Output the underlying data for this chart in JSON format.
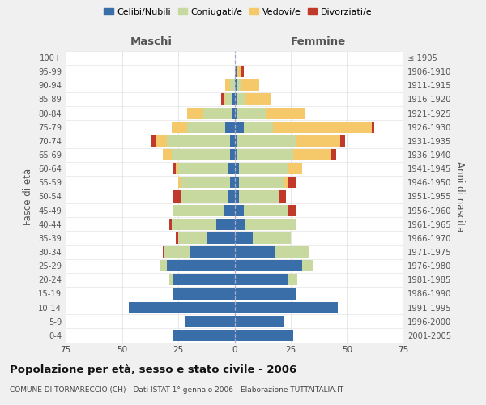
{
  "age_groups": [
    "0-4",
    "5-9",
    "10-14",
    "15-19",
    "20-24",
    "25-29",
    "30-34",
    "35-39",
    "40-44",
    "45-49",
    "50-54",
    "55-59",
    "60-64",
    "65-69",
    "70-74",
    "75-79",
    "80-84",
    "85-89",
    "90-94",
    "95-99",
    "100+"
  ],
  "birth_years": [
    "2001-2005",
    "1996-2000",
    "1991-1995",
    "1986-1990",
    "1981-1985",
    "1976-1980",
    "1971-1975",
    "1966-1970",
    "1961-1965",
    "1956-1960",
    "1951-1955",
    "1946-1950",
    "1941-1945",
    "1936-1940",
    "1931-1935",
    "1926-1930",
    "1921-1925",
    "1916-1920",
    "1911-1915",
    "1906-1910",
    "≤ 1905"
  ],
  "males": {
    "celibi": [
      27,
      22,
      47,
      27,
      27,
      30,
      20,
      12,
      8,
      5,
      3,
      2,
      3,
      2,
      2,
      4,
      1,
      1,
      0,
      0,
      0
    ],
    "coniugati": [
      0,
      0,
      0,
      0,
      2,
      3,
      11,
      13,
      20,
      22,
      21,
      22,
      22,
      26,
      28,
      17,
      13,
      3,
      2,
      0,
      0
    ],
    "vedovi": [
      0,
      0,
      0,
      0,
      0,
      0,
      0,
      0,
      0,
      0,
      0,
      1,
      1,
      4,
      5,
      7,
      7,
      1,
      2,
      0,
      0
    ],
    "divorziati": [
      0,
      0,
      0,
      0,
      0,
      0,
      1,
      1,
      1,
      0,
      3,
      0,
      1,
      0,
      2,
      0,
      0,
      1,
      0,
      0,
      0
    ]
  },
  "females": {
    "nubili": [
      26,
      22,
      46,
      27,
      24,
      30,
      18,
      8,
      5,
      4,
      2,
      2,
      2,
      1,
      1,
      4,
      1,
      1,
      1,
      1,
      0
    ],
    "coniugate": [
      0,
      0,
      0,
      0,
      4,
      5,
      15,
      17,
      22,
      20,
      18,
      20,
      22,
      25,
      26,
      13,
      13,
      4,
      2,
      0,
      0
    ],
    "vedove": [
      0,
      0,
      0,
      0,
      0,
      0,
      0,
      0,
      0,
      0,
      0,
      2,
      6,
      17,
      20,
      44,
      17,
      11,
      8,
      2,
      0
    ],
    "divorziate": [
      0,
      0,
      0,
      0,
      0,
      0,
      0,
      0,
      0,
      3,
      3,
      3,
      0,
      2,
      2,
      1,
      0,
      0,
      0,
      1,
      0
    ]
  },
  "colors": {
    "celibi": "#3a6ea8",
    "coniugati": "#c8d9a0",
    "vedovi": "#f5c96a",
    "divorziati": "#c0392b"
  },
  "xlim": 75,
  "title": "Popolazione per età, sesso e stato civile - 2006",
  "subtitle": "COMUNE DI TORNARECCIO (CH) - Dati ISTAT 1° gennaio 2006 - Elaborazione TUTTAITALIA.IT",
  "ylabel_left": "Fasce di età",
  "ylabel_right": "Anni di nascita",
  "label_maschi": "Maschi",
  "label_femmine": "Femmine",
  "bg_color": "#f0f0f0",
  "plot_bg": "#ffffff",
  "legend_labels": [
    "Celibi/Nubili",
    "Coniugati/e",
    "Vedovi/e",
    "Divorziati/e"
  ]
}
